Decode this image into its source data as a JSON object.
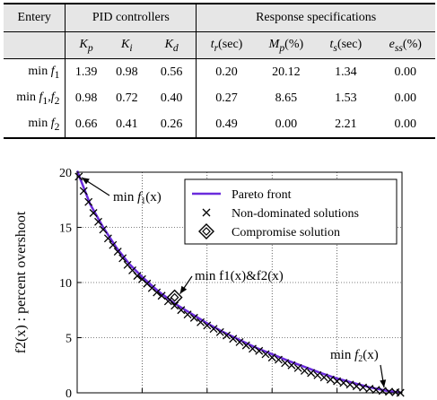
{
  "table": {
    "header_groups": [
      "Entery",
      "PID controllers",
      "Response specifications"
    ],
    "columns": [
      {
        "base": "K",
        "sub": "p"
      },
      {
        "base": "K",
        "sub": "i"
      },
      {
        "base": "K",
        "sub": "d"
      },
      {
        "base": "t",
        "sub": "r",
        "unit": "(sec)"
      },
      {
        "base": "M",
        "sub": "p",
        "unit": "(%)"
      },
      {
        "base": "t",
        "sub": "s",
        "unit": "(sec)"
      },
      {
        "base": "e",
        "sub": "ss",
        "unit": "(%)"
      }
    ],
    "rows": [
      {
        "label": {
          "pre": "min ",
          "f": "f",
          "sub": "1",
          "post": ""
        },
        "values": [
          "1.39",
          "0.98",
          "0.56",
          "0.20",
          "20.12",
          "1.34",
          "0.00"
        ]
      },
      {
        "label": {
          "pre": "min ",
          "f": "f",
          "sub": "1",
          "post": ",f",
          "sub2": "2"
        },
        "values": [
          "0.98",
          "0.72",
          "0.40",
          "0.27",
          "8.65",
          "1.53",
          "0.00"
        ]
      },
      {
        "label": {
          "pre": "min ",
          "f": "f",
          "sub": "2",
          "post": ""
        },
        "values": [
          "0.66",
          "0.41",
          "0.26",
          "0.49",
          "0.00",
          "2.21",
          "0.00"
        ]
      }
    ]
  },
  "chart_data": {
    "type": "scatter",
    "ylabel": "f2(x) : percent overshoot",
    "ylim": [
      0,
      20
    ],
    "yticks": [
      "0",
      "5",
      "10",
      "15",
      "20"
    ],
    "grid": true,
    "legend_placement": "top-right",
    "legend": [
      "Pareto front",
      "Non-dominated solutions",
      "Compromise solution"
    ],
    "colors": {
      "pareto_front": "#6a2bdc",
      "markers": "#000000"
    },
    "series": [
      {
        "name": "Pareto front",
        "x": [
          0,
          0.04,
          0.08,
          0.12,
          0.16,
          0.2,
          0.25,
          0.3,
          0.35,
          0.4,
          0.45,
          0.5,
          0.55,
          0.6,
          0.65,
          0.7,
          0.75,
          0.8,
          0.85,
          0.9,
          0.95,
          1.0
        ],
        "y": [
          20.12,
          17.1,
          15.0,
          13.2,
          11.7,
          10.5,
          9.2,
          8.1,
          7.2,
          6.3,
          5.5,
          4.8,
          4.1,
          3.5,
          2.9,
          2.35,
          1.8,
          1.3,
          0.9,
          0.5,
          0.2,
          0.0
        ]
      },
      {
        "name": "Non-dominated solutions",
        "x": [
          0.005,
          0.02,
          0.035,
          0.05,
          0.065,
          0.08,
          0.095,
          0.11,
          0.125,
          0.14,
          0.155,
          0.17,
          0.185,
          0.2,
          0.215,
          0.23,
          0.245,
          0.26,
          0.28,
          0.3,
          0.32,
          0.34,
          0.36,
          0.38,
          0.4,
          0.42,
          0.44,
          0.46,
          0.48,
          0.5,
          0.52,
          0.54,
          0.56,
          0.58,
          0.6,
          0.62,
          0.64,
          0.66,
          0.68,
          0.7,
          0.72,
          0.74,
          0.76,
          0.78,
          0.8,
          0.82,
          0.84,
          0.86,
          0.88,
          0.9,
          0.92,
          0.94,
          0.96,
          0.98,
          0.995
        ],
        "y": [
          19.6,
          18.3,
          17.3,
          16.3,
          15.5,
          14.8,
          14.0,
          13.4,
          12.8,
          12.2,
          11.6,
          11.1,
          10.6,
          10.3,
          9.9,
          9.5,
          9.1,
          8.8,
          8.3,
          7.9,
          7.5,
          7.1,
          6.8,
          6.4,
          6.1,
          5.8,
          5.5,
          5.2,
          4.9,
          4.6,
          4.3,
          4.0,
          3.8,
          3.5,
          3.2,
          3.0,
          2.7,
          2.5,
          2.25,
          2.0,
          1.8,
          1.6,
          1.4,
          1.2,
          1.05,
          0.9,
          0.75,
          0.6,
          0.48,
          0.37,
          0.27,
          0.18,
          0.1,
          0.05,
          0.0
        ]
      },
      {
        "name": "Compromise solution",
        "x": [
          0.3
        ],
        "y": [
          8.65
        ]
      }
    ],
    "annotations": [
      {
        "text": "min f1(x)",
        "base": "min ",
        "f": "f",
        "sub": "1",
        "arg": "(x)"
      },
      {
        "text": "min f1(x)&f2(x)"
      },
      {
        "text": "min f2(x)",
        "base": "min ",
        "f": "f",
        "sub": "2",
        "arg": "(x)"
      }
    ]
  }
}
